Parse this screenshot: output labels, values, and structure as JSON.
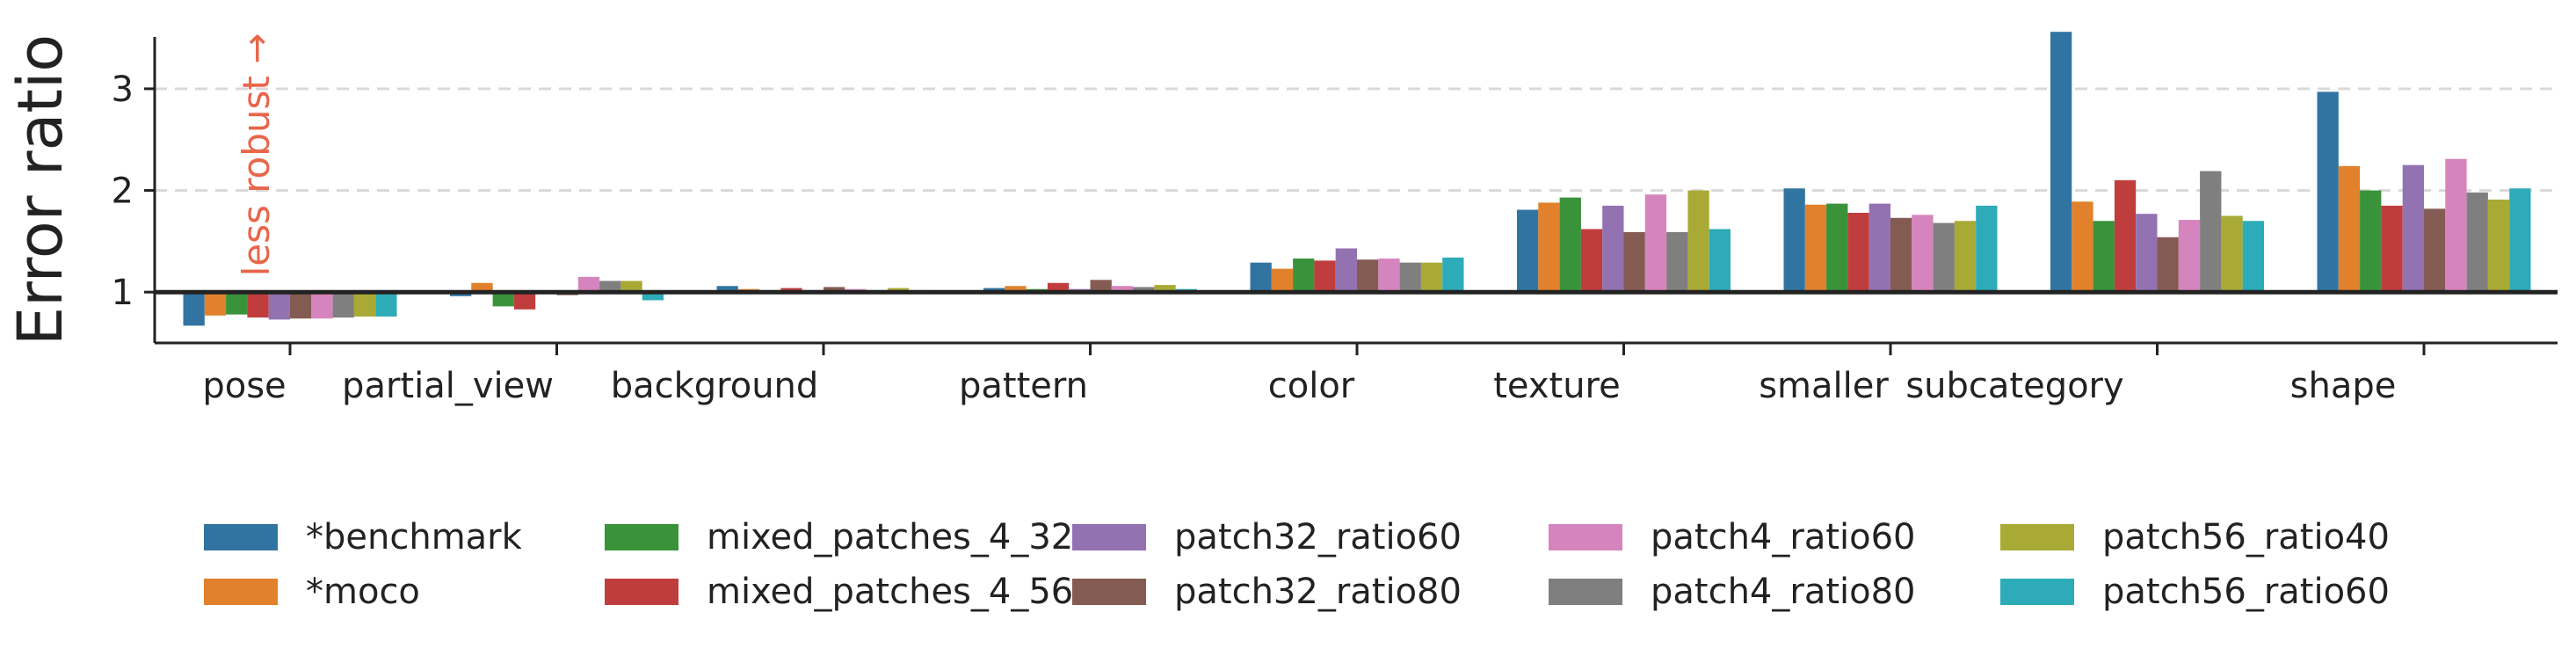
{
  "chart_data": {
    "type": "bar",
    "ylabel": "Error ratio",
    "annotation": "less robust →",
    "annotation_color": "#e8664a",
    "baseline": 1,
    "ylim": [
      0.5,
      3.7
    ],
    "yticks": [
      1,
      2,
      3
    ],
    "grid": "horizontal dashed at y ticks",
    "legend_position": "below plot, 5 columns",
    "categories": [
      "pose",
      "partial_view",
      "background",
      "pattern",
      "color",
      "texture",
      "smaller",
      "subcategory",
      "shape"
    ],
    "series": [
      {
        "name": "*benchmark",
        "color": "#3274a1",
        "values": [
          0.67,
          0.96,
          1.06,
          1.04,
          1.29,
          1.81,
          2.02,
          3.56,
          2.97
        ]
      },
      {
        "name": "*moco",
        "color": "#e1812c",
        "values": [
          0.77,
          1.09,
          1.03,
          1.06,
          1.23,
          1.88,
          1.86,
          1.89,
          2.24
        ]
      },
      {
        "name": "mixed_patches_4_32",
        "color": "#3a923a",
        "values": [
          0.78,
          0.86,
          1.02,
          1.03,
          1.33,
          1.93,
          1.87,
          1.7,
          2.0
        ]
      },
      {
        "name": "mixed_patches_4_56",
        "color": "#c03d3e",
        "values": [
          0.75,
          0.83,
          1.04,
          1.09,
          1.31,
          1.62,
          1.78,
          2.1,
          1.85
        ]
      },
      {
        "name": "patch32_ratio60",
        "color": "#9372b2",
        "values": [
          0.73,
          0.98,
          1.02,
          1.03,
          1.43,
          1.85,
          1.87,
          1.77,
          2.25
        ]
      },
      {
        "name": "patch32_ratio80",
        "color": "#845b53",
        "values": [
          0.74,
          0.97,
          1.05,
          1.12,
          1.32,
          1.59,
          1.73,
          1.54,
          1.82
        ]
      },
      {
        "name": "patch4_ratio60",
        "color": "#d684bd",
        "values": [
          0.74,
          1.15,
          1.03,
          1.06,
          1.33,
          1.96,
          1.76,
          1.71,
          2.31
        ]
      },
      {
        "name": "patch4_ratio80",
        "color": "#7f7f7f",
        "values": [
          0.75,
          1.11,
          1.02,
          1.05,
          1.29,
          1.59,
          1.68,
          2.19,
          1.98
        ]
      },
      {
        "name": "patch56_ratio40",
        "color": "#a9aa35",
        "values": [
          0.76,
          1.11,
          1.04,
          1.07,
          1.29,
          2.0,
          1.7,
          1.75,
          1.91
        ]
      },
      {
        "name": "patch56_ratio60",
        "color": "#2eabb8",
        "values": [
          0.76,
          0.92,
          1.02,
          1.03,
          1.34,
          1.62,
          1.85,
          1.7,
          2.02
        ]
      }
    ]
  }
}
